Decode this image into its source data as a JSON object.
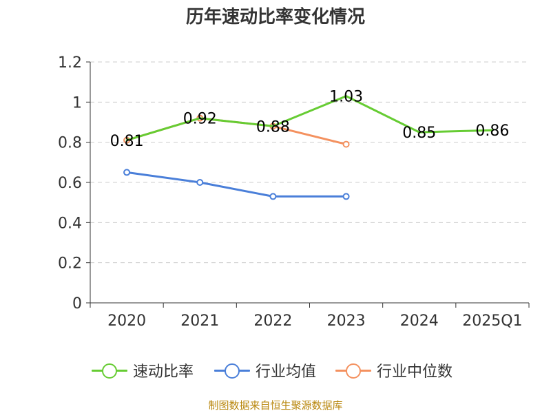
{
  "chart_data": {
    "type": "line",
    "title": "历年速动比率变化情况",
    "categories": [
      "2020",
      "2021",
      "2022",
      "2023",
      "2024",
      "2025Q1"
    ],
    "ylim": [
      0,
      1.2
    ],
    "yticks": [
      "0",
      "0.2",
      "0.4",
      "0.6",
      "0.8",
      "1",
      "1.2"
    ],
    "grid": true,
    "legend_position": "bottom",
    "series": [
      {
        "name": "速动比率",
        "color": "#66cc33",
        "values": [
          0.81,
          0.92,
          0.88,
          1.03,
          0.85,
          0.86
        ],
        "labels": [
          "0.81",
          "0.92",
          "0.88",
          "1.03",
          "0.85",
          "0.86"
        ],
        "show_markers": false
      },
      {
        "name": "行业均值",
        "color": "#4a7fd9",
        "values": [
          0.65,
          0.6,
          0.53,
          0.53,
          null,
          null
        ],
        "show_markers": true
      },
      {
        "name": "行业中位数",
        "color": "#f4915f",
        "values": [
          0.81,
          0.92,
          0.88,
          0.79,
          null,
          null
        ],
        "show_markers": true
      }
    ],
    "source": "制图数据来自恒生聚源数据库"
  }
}
